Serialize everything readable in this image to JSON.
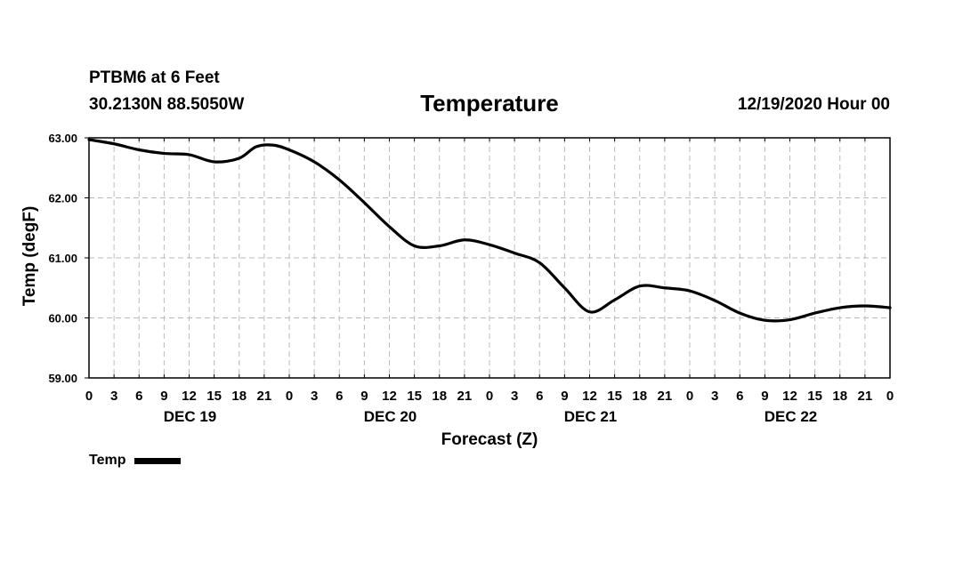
{
  "header": {
    "station": "PTBM6 at 6 Feet",
    "coords": "30.2130N 88.5050W",
    "title": "Temperature",
    "datetime": "12/19/2020 Hour 00"
  },
  "legend": {
    "label": "Temp"
  },
  "chart_data": {
    "type": "line",
    "title": "Temperature",
    "xlabel": "Forecast (Z)",
    "ylabel": "Temp (degF)",
    "ylim": [
      59,
      63
    ],
    "xlim": [
      0,
      96
    ],
    "y_ticks": [
      "59.00",
      "60.00",
      "61.00",
      "62.00",
      "63.00"
    ],
    "x_tick_labels": [
      "0",
      "3",
      "6",
      "9",
      "12",
      "15",
      "18",
      "21",
      "0",
      "3",
      "6",
      "9",
      "12",
      "15",
      "18",
      "21",
      "0",
      "3",
      "6",
      "9",
      "12",
      "15",
      "18",
      "21",
      "0",
      "3",
      "6",
      "9",
      "12",
      "15",
      "18",
      "21",
      "0"
    ],
    "day_labels": [
      {
        "label": "DEC 19",
        "hour": 12
      },
      {
        "label": "DEC 20",
        "hour": 36
      },
      {
        "label": "DEC 21",
        "hour": 60
      },
      {
        "label": "DEC 22",
        "hour": 84
      }
    ],
    "grid": true,
    "series": [
      {
        "name": "Temp",
        "color": "#000000",
        "x": [
          0,
          3,
          6,
          9,
          12,
          15,
          18,
          20,
          22,
          24,
          27,
          30,
          33,
          36,
          39,
          42,
          45,
          48,
          51,
          54,
          57,
          60,
          63,
          66,
          69,
          72,
          75,
          78,
          81,
          84,
          87,
          90,
          93,
          96
        ],
        "values": [
          62.97,
          62.9,
          62.8,
          62.74,
          62.72,
          62.6,
          62.66,
          62.85,
          62.88,
          62.8,
          62.6,
          62.3,
          61.92,
          61.52,
          61.2,
          61.2,
          61.3,
          61.22,
          61.08,
          60.92,
          60.5,
          60.1,
          60.3,
          60.53,
          60.5,
          60.45,
          60.29,
          60.08,
          59.96,
          59.97,
          60.08,
          60.17,
          60.2,
          60.17
        ]
      }
    ]
  }
}
